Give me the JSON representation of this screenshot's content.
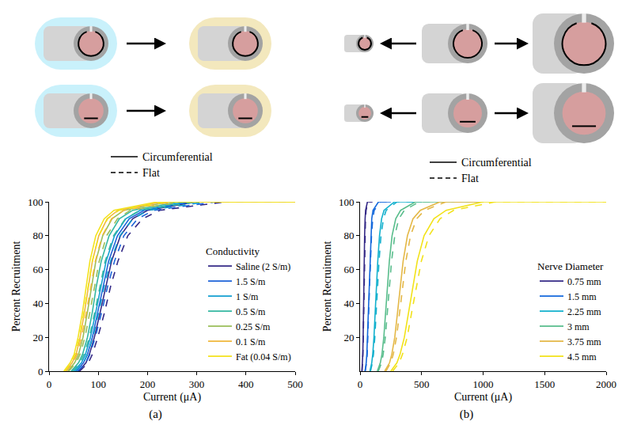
{
  "chart_data": [
    {
      "type": "line",
      "panel_label": "(a)",
      "key": [
        {
          "name": "Circumferential",
          "line_style": "solid"
        },
        {
          "name": "Flat",
          "line_style": "dashed"
        }
      ],
      "x_label": "Current (μA)",
      "y_label": "Percent Recruitment",
      "legend_title": "Conductivity",
      "legend": "lower right",
      "grid": false,
      "xlim": [
        0,
        500
      ],
      "xticks": [
        0,
        100,
        200,
        300,
        400,
        500
      ],
      "ylim": [
        0,
        100
      ],
      "yticks": [
        0,
        20,
        40,
        60,
        80,
        100
      ],
      "series": [
        {
          "name": "Saline (2 S/m)",
          "color": "#352a87",
          "line_style": "solid",
          "electrode": "Circumferential",
          "x": [
            60,
            75,
            82,
            92,
            104,
            115,
            127,
            145,
            170,
            200,
            300,
            500
          ],
          "values": [
            0,
            5,
            10,
            20,
            35,
            50,
            65,
            80,
            90,
            95,
            100,
            100
          ]
        },
        {
          "name": "Saline (2 S/m)",
          "color": "#352a87",
          "line_style": "dashed",
          "electrode": "Flat",
          "x": [
            62,
            80,
            88,
            99,
            113,
            125,
            140,
            160,
            190,
            225,
            360,
            500
          ],
          "values": [
            0,
            5,
            10,
            20,
            35,
            50,
            65,
            80,
            90,
            95,
            100,
            100
          ]
        },
        {
          "name": "1.5 S/m",
          "color": "#1d63d8",
          "line_style": "solid",
          "electrode": "Circumferential",
          "x": [
            55,
            70,
            78,
            88,
            99,
            110,
            121,
            139,
            163,
            193,
            290,
            500
          ],
          "values": [
            0,
            5,
            10,
            20,
            35,
            50,
            65,
            80,
            90,
            95,
            100,
            100
          ]
        },
        {
          "name": "1.5 S/m",
          "color": "#1d63d8",
          "line_style": "dashed",
          "electrode": "Flat",
          "x": [
            58,
            75,
            83,
            94,
            107,
            119,
            133,
            152,
            180,
            213,
            340,
            500
          ],
          "values": [
            0,
            5,
            10,
            20,
            35,
            50,
            65,
            80,
            90,
            95,
            100,
            100
          ]
        },
        {
          "name": "1 S/m",
          "color": "#139fd0",
          "line_style": "solid",
          "electrode": "Circumferential",
          "x": [
            50,
            66,
            74,
            84,
            95,
            105,
            116,
            133,
            156,
            185,
            280,
            500
          ],
          "values": [
            0,
            5,
            10,
            20,
            35,
            50,
            65,
            80,
            90,
            95,
            100,
            100
          ]
        },
        {
          "name": "1 S/m",
          "color": "#139fd0",
          "line_style": "dashed",
          "electrode": "Flat",
          "x": [
            53,
            70,
            78,
            89,
            101,
            112,
            125,
            144,
            170,
            202,
            320,
            500
          ],
          "values": [
            0,
            5,
            10,
            20,
            35,
            50,
            65,
            80,
            90,
            95,
            100,
            100
          ]
        },
        {
          "name": "0.5 S/m",
          "color": "#35b7a1",
          "line_style": "solid",
          "electrode": "Circumferential",
          "x": [
            45,
            60,
            68,
            78,
            88,
            96,
            106,
            122,
            143,
            170,
            265,
            500
          ],
          "values": [
            0,
            5,
            10,
            20,
            35,
            50,
            65,
            80,
            90,
            95,
            100,
            100
          ]
        },
        {
          "name": "0.5 S/m",
          "color": "#35b7a1",
          "line_style": "dashed",
          "electrode": "Flat",
          "x": [
            47,
            63,
            71,
            82,
            93,
            103,
            114,
            131,
            155,
            185,
            300,
            500
          ],
          "values": [
            0,
            5,
            10,
            20,
            35,
            50,
            65,
            80,
            90,
            95,
            100,
            100
          ]
        },
        {
          "name": "0.25 S/m",
          "color": "#9abe5a",
          "line_style": "solid",
          "electrode": "Circumferential",
          "x": [
            38,
            52,
            60,
            69,
            78,
            86,
            95,
            109,
            128,
            152,
            245,
            500
          ],
          "values": [
            0,
            5,
            10,
            20,
            35,
            50,
            65,
            80,
            90,
            95,
            100,
            100
          ]
        },
        {
          "name": "0.25 S/m",
          "color": "#9abe5a",
          "line_style": "dashed",
          "electrode": "Flat",
          "x": [
            40,
            55,
            63,
            73,
            83,
            92,
            102,
            117,
            139,
            165,
            270,
            500
          ],
          "values": [
            0,
            5,
            10,
            20,
            35,
            50,
            65,
            80,
            90,
            95,
            100,
            100
          ]
        },
        {
          "name": "0.1 S/m",
          "color": "#f0b83c",
          "line_style": "solid",
          "electrode": "Circumferential",
          "x": [
            33,
            47,
            55,
            63,
            72,
            80,
            88,
            101,
            118,
            140,
            230,
            500
          ],
          "values": [
            0,
            5,
            10,
            20,
            35,
            50,
            65,
            80,
            90,
            95,
            100,
            100
          ]
        },
        {
          "name": "0.1 S/m",
          "color": "#f0b83c",
          "line_style": "dashed",
          "electrode": "Flat",
          "x": [
            35,
            49,
            57,
            66,
            76,
            85,
            94,
            108,
            127,
            152,
            250,
            500
          ],
          "values": [
            0,
            5,
            10,
            20,
            35,
            50,
            65,
            80,
            90,
            95,
            100,
            100
          ]
        },
        {
          "name": "Fat (0.04 S/m)",
          "color": "#f3e21e",
          "line_style": "solid",
          "electrode": "Circumferential",
          "x": [
            30,
            43,
            51,
            59,
            68,
            75,
            83,
            95,
            112,
            132,
            220,
            500
          ],
          "values": [
            0,
            5,
            10,
            20,
            35,
            50,
            65,
            80,
            90,
            95,
            100,
            100
          ]
        },
        {
          "name": "Fat (0.04 S/m)",
          "color": "#f3e21e",
          "line_style": "dashed",
          "electrode": "Flat",
          "x": [
            32,
            45,
            53,
            62,
            71,
            80,
            88,
            101,
            119,
            142,
            240,
            500
          ],
          "values": [
            0,
            5,
            10,
            20,
            35,
            50,
            65,
            80,
            90,
            95,
            100,
            100
          ]
        }
      ]
    },
    {
      "type": "line",
      "panel_label": "(b)",
      "key": [
        {
          "name": "Circumferential",
          "line_style": "solid"
        },
        {
          "name": "Flat",
          "line_style": "dashed"
        }
      ],
      "x_label": "Current (μA)",
      "y_label": "Percent Recruitment",
      "legend_title": "Nerve Diameter",
      "legend": "lower right",
      "grid": false,
      "xlim": [
        0,
        2000
      ],
      "xticks": [
        0,
        500,
        1000,
        1500,
        2000
      ],
      "ylim": [
        0,
        100
      ],
      "yticks": [
        20,
        40,
        60,
        80,
        100
      ],
      "series": [
        {
          "name": "0.75 mm",
          "color": "#352a87",
          "line_style": "solid",
          "electrode": "Circumferential",
          "x": [
            15,
            20,
            22,
            25,
            27,
            30,
            33,
            37,
            41,
            45,
            60,
            100
          ],
          "values": [
            0,
            5,
            10,
            20,
            35,
            50,
            65,
            80,
            90,
            95,
            100,
            100
          ]
        },
        {
          "name": "0.75 mm",
          "color": "#352a87",
          "line_style": "dashed",
          "electrode": "Flat",
          "x": [
            16,
            21,
            23,
            26,
            29,
            32,
            35,
            39,
            44,
            49,
            65,
            100
          ],
          "values": [
            0,
            5,
            10,
            20,
            35,
            50,
            65,
            80,
            90,
            95,
            100,
            100
          ]
        },
        {
          "name": "1.5 mm",
          "color": "#1569dc",
          "line_style": "solid",
          "electrode": "Circumferential",
          "x": [
            40,
            50,
            55,
            60,
            66,
            72,
            78,
            86,
            95,
            105,
            150,
            250
          ],
          "values": [
            0,
            5,
            10,
            20,
            35,
            50,
            65,
            80,
            90,
            95,
            100,
            100
          ]
        },
        {
          "name": "1.5 mm",
          "color": "#1569dc",
          "line_style": "dashed",
          "electrode": "Flat",
          "x": [
            42,
            53,
            58,
            64,
            70,
            77,
            84,
            93,
            103,
            115,
            165,
            250
          ],
          "values": [
            0,
            5,
            10,
            20,
            35,
            50,
            65,
            80,
            90,
            95,
            100,
            100
          ]
        },
        {
          "name": "2.25 mm",
          "color": "#12b0cd",
          "line_style": "solid",
          "electrode": "Circumferential",
          "x": [
            80,
            95,
            103,
            113,
            123,
            133,
            144,
            158,
            175,
            195,
            280,
            500
          ],
          "values": [
            0,
            5,
            10,
            20,
            35,
            50,
            65,
            80,
            90,
            95,
            100,
            100
          ]
        },
        {
          "name": "2.25 mm",
          "color": "#12b0cd",
          "line_style": "dashed",
          "electrode": "Flat",
          "x": [
            85,
            100,
            109,
            120,
            131,
            142,
            154,
            170,
            190,
            212,
            300,
            500
          ],
          "values": [
            0,
            5,
            10,
            20,
            35,
            50,
            65,
            80,
            90,
            95,
            100,
            100
          ]
        },
        {
          "name": "3 mm",
          "color": "#59bd8c",
          "line_style": "solid",
          "electrode": "Circumferential",
          "x": [
            140,
            165,
            178,
            193,
            208,
            222,
            238,
            260,
            290,
            330,
            450,
            1000
          ],
          "values": [
            0,
            5,
            10,
            20,
            35,
            50,
            65,
            80,
            90,
            95,
            100,
            100
          ]
        },
        {
          "name": "3 mm",
          "color": "#59bd8c",
          "line_style": "dashed",
          "electrode": "Flat",
          "x": [
            148,
            175,
            188,
            205,
            222,
            238,
            256,
            282,
            315,
            360,
            480,
            1000
          ],
          "values": [
            0,
            5,
            10,
            20,
            35,
            50,
            65,
            80,
            90,
            95,
            100,
            100
          ]
        },
        {
          "name": "3.75 mm",
          "color": "#e4b847",
          "line_style": "solid",
          "electrode": "Circumferential",
          "x": [
            200,
            240,
            258,
            282,
            305,
            327,
            350,
            385,
            430,
            490,
            650,
            1000
          ],
          "values": [
            0,
            5,
            10,
            20,
            35,
            50,
            65,
            80,
            90,
            95,
            100,
            100
          ]
        },
        {
          "name": "3.75 mm",
          "color": "#e4b847",
          "line_style": "dashed",
          "electrode": "Flat",
          "x": [
            210,
            250,
            270,
            296,
            322,
            345,
            372,
            410,
            460,
            525,
            700,
            1000
          ],
          "values": [
            0,
            5,
            10,
            20,
            35,
            50,
            65,
            80,
            90,
            95,
            100,
            100
          ]
        },
        {
          "name": "4.5 mm",
          "color": "#f2e21a",
          "line_style": "solid",
          "electrode": "Circumferential",
          "x": [
            250,
            300,
            325,
            360,
            395,
            430,
            465,
            520,
            600,
            700,
            1000,
            2000
          ],
          "values": [
            0,
            5,
            10,
            20,
            35,
            50,
            65,
            80,
            90,
            95,
            100,
            100
          ]
        },
        {
          "name": "4.5 mm",
          "color": "#f2e21a",
          "line_style": "dashed",
          "electrode": "Flat",
          "x": [
            265,
            318,
            345,
            383,
            420,
            458,
            498,
            560,
            650,
            760,
            1100,
            2000
          ],
          "values": [
            0,
            5,
            10,
            20,
            35,
            50,
            65,
            80,
            90,
            95,
            100,
            100
          ]
        }
      ]
    }
  ]
}
